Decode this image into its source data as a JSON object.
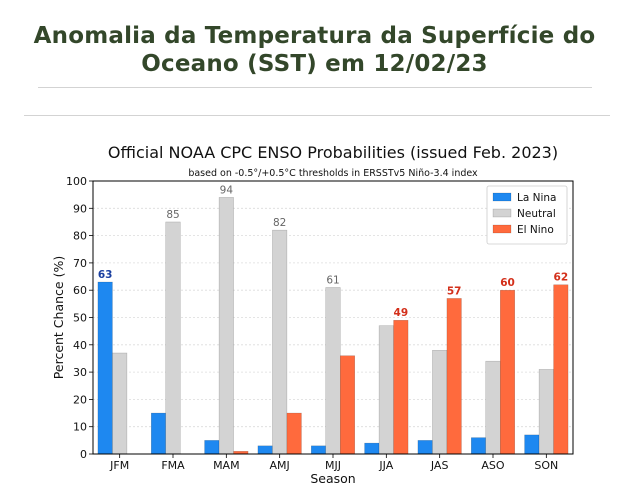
{
  "slide": {
    "title_line1": "Anomalia da Temperatura da Superfície do",
    "title_line2": "Oceano (SST) em 12/02/23"
  },
  "chart_data": {
    "type": "bar",
    "title": "Official NOAA CPC ENSO Probabilities (issued Feb. 2023)",
    "subtitle": "based on -0.5°/+0.5°C thresholds in ERSSTv5 Niño-3.4 index",
    "xlabel": "Season",
    "ylabel": "Percent Chance (%)",
    "ylim": [
      0,
      100
    ],
    "yticks": [
      "0",
      "10",
      "20",
      "30",
      "40",
      "50",
      "60",
      "70",
      "80",
      "90",
      "100"
    ],
    "grid": true,
    "legend_position": "top-right",
    "categories": [
      "JFM",
      "FMA",
      "MAM",
      "AMJ",
      "MJJ",
      "JJA",
      "JAS",
      "ASO",
      "SON"
    ],
    "series": [
      {
        "name": "La Nina",
        "color": "#1e88f0",
        "values": [
          63,
          15,
          5,
          3,
          3,
          4,
          5,
          6,
          7
        ]
      },
      {
        "name": "Neutral",
        "color": "#d3d3d3",
        "values": [
          37,
          85,
          94,
          82,
          61,
          47,
          38,
          34,
          31
        ]
      },
      {
        "name": "El Nino",
        "color": "#ff6a3d",
        "values": [
          0,
          0,
          1,
          15,
          36,
          49,
          57,
          60,
          62
        ]
      }
    ],
    "data_labels": [
      {
        "series": 0,
        "index": 0,
        "text": "63",
        "color": "#1a3fa0"
      },
      {
        "series": 1,
        "index": 1,
        "text": "85",
        "color": "#666666"
      },
      {
        "series": 1,
        "index": 2,
        "text": "94",
        "color": "#666666"
      },
      {
        "series": 1,
        "index": 3,
        "text": "82",
        "color": "#666666"
      },
      {
        "series": 1,
        "index": 4,
        "text": "61",
        "color": "#666666"
      },
      {
        "series": 2,
        "index": 5,
        "text": "49",
        "color": "#d32f1a"
      },
      {
        "series": 2,
        "index": 6,
        "text": "57",
        "color": "#d32f1a"
      },
      {
        "series": 2,
        "index": 7,
        "text": "60",
        "color": "#d32f1a"
      },
      {
        "series": 2,
        "index": 8,
        "text": "62",
        "color": "#d32f1a"
      }
    ]
  }
}
